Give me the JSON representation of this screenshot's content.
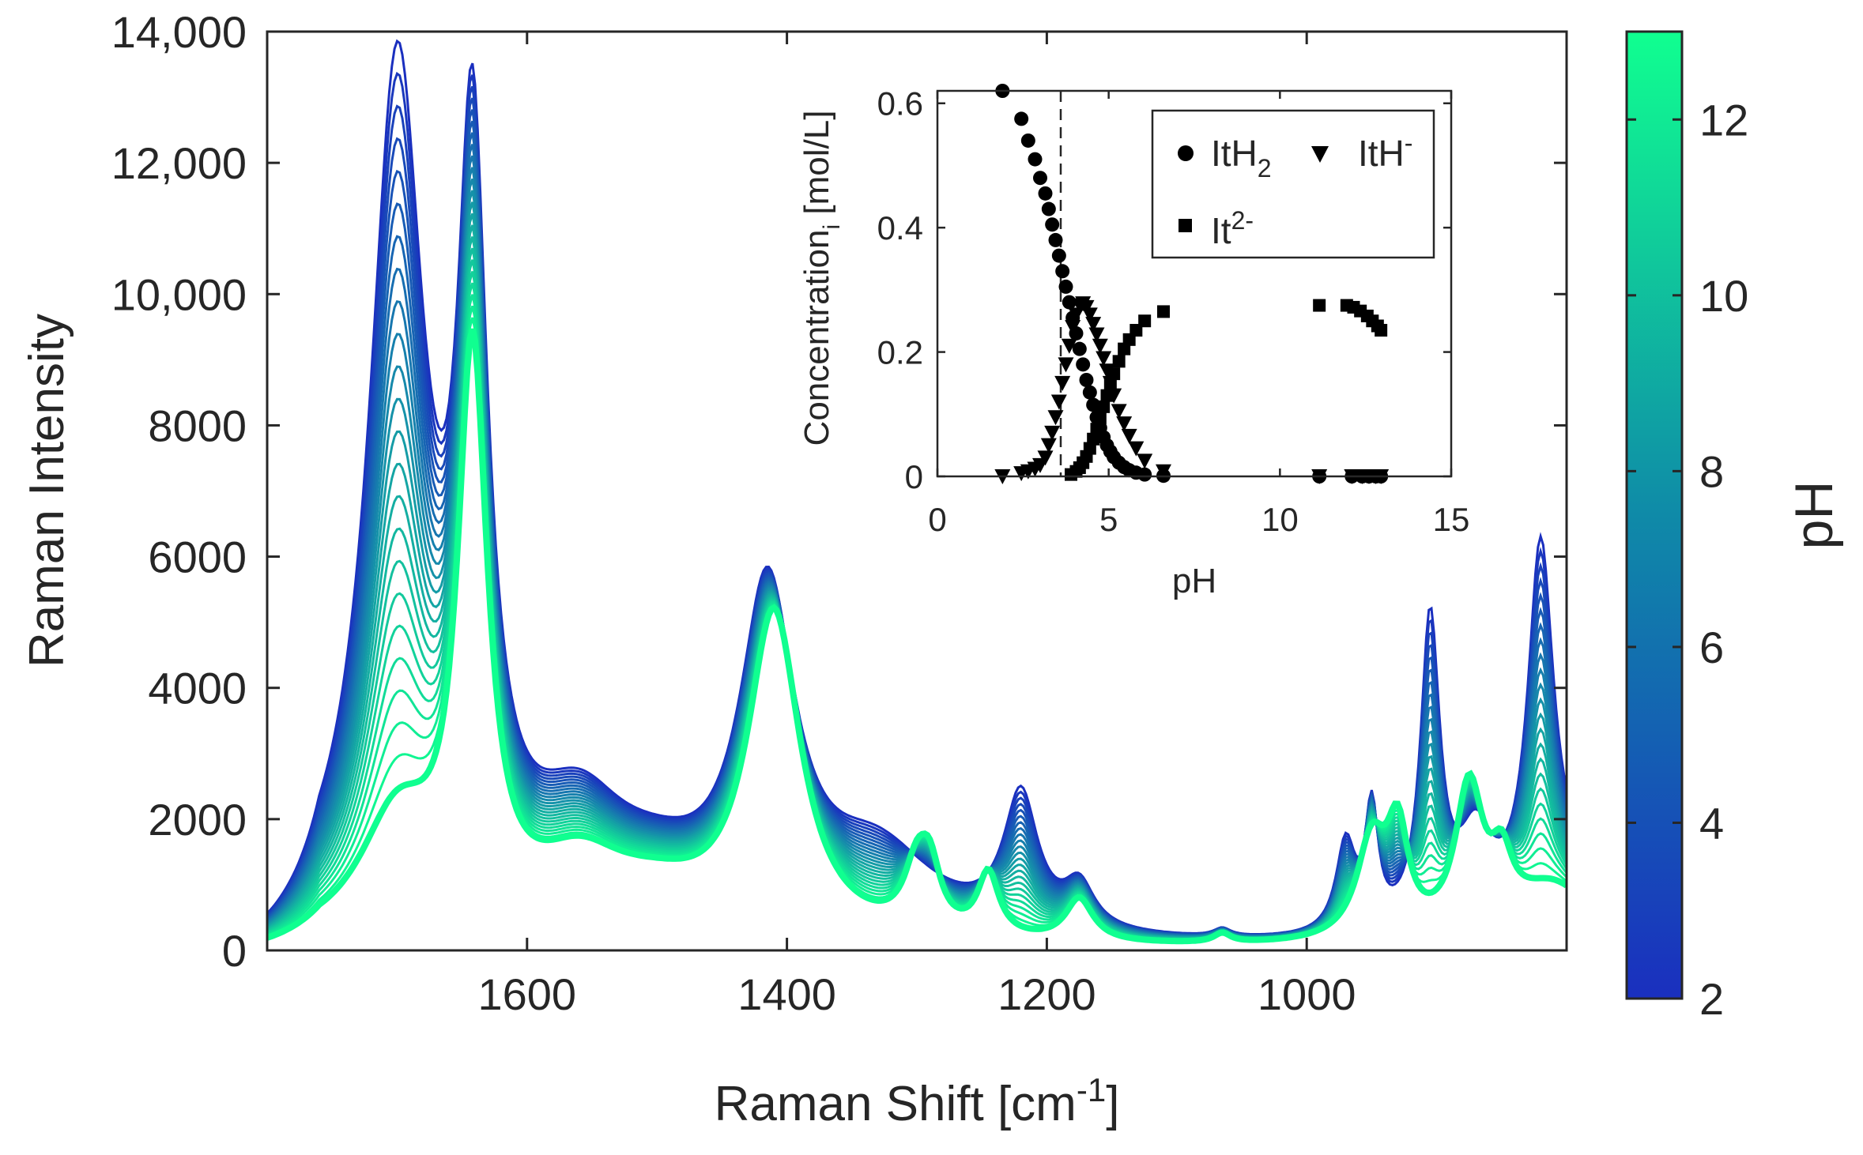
{
  "chart_data": [
    {
      "id": "main",
      "type": "line",
      "xlabel": "Raman Shift [cm",
      "xlabel_sup": "-1",
      "xlabel_end": "]",
      "ylabel": "Raman Intensity",
      "xlim": [
        1800,
        800
      ],
      "x_reversed": true,
      "ylim": [
        0,
        14000
      ],
      "xticks": [
        1600,
        1400,
        1200,
        1000
      ],
      "xtick_labels": [
        "1600",
        "1400",
        "1200",
        "1000"
      ],
      "yticks": [
        0,
        2000,
        4000,
        6000,
        8000,
        10000,
        12000,
        14000
      ],
      "ytick_labels": [
        "0",
        "2000",
        "4000",
        "6000",
        "8000",
        "10,000",
        "12,000",
        "14,000"
      ],
      "series_count": 24,
      "series_ph_range": [
        2,
        13
      ],
      "low_ph_peaks": [
        {
          "x": 1700,
          "y": 13600
        },
        {
          "x": 1642,
          "y": 13100
        },
        {
          "x": 1410,
          "y": 5800
        },
        {
          "x": 1220,
          "y": 2400
        },
        {
          "x": 905,
          "y": 5150
        },
        {
          "x": 820,
          "y": 6500
        }
      ],
      "high_ph_peaks": [
        {
          "x": 1642,
          "y": 9800
        },
        {
          "x": 1410,
          "y": 5600
        },
        {
          "x": 1245,
          "y": 1150
        },
        {
          "x": 1175,
          "y": 800
        },
        {
          "x": 1065,
          "y": 150
        },
        {
          "x": 950,
          "y": 1900
        },
        {
          "x": 930,
          "y": 2100
        },
        {
          "x": 875,
          "y": 2600
        },
        {
          "x": 850,
          "y": 1650
        }
      ]
    },
    {
      "id": "colorbar",
      "type": "colorbar",
      "label": "pH",
      "range": [
        2,
        13
      ],
      "ticks": [
        2,
        4,
        6,
        8,
        10,
        12
      ],
      "tick_labels": [
        "2",
        "4",
        "6",
        "8",
        "10",
        "12"
      ],
      "color_low": "#1a2fbf",
      "color_high": "#10ff90"
    },
    {
      "id": "inset",
      "type": "scatter",
      "xlabel": "pH",
      "ylabel": "Concentration",
      "ylabel_sub": "i",
      "ylabel_end": " [mol/L]",
      "xlim": [
        0,
        15
      ],
      "ylim": [
        0,
        0.62
      ],
      "xticks": [
        0,
        5,
        10,
        15
      ],
      "xtick_labels": [
        "0",
        "5",
        "10",
        "15"
      ],
      "yticks": [
        0,
        0.2,
        0.4,
        0.6
      ],
      "ytick_labels": [
        "0",
        "0.2",
        "0.4",
        "0.6"
      ],
      "dashed_vline_x": 3.6,
      "legend": {
        "location": "top-right",
        "entries": [
          {
            "marker": "circle",
            "label": "ItH",
            "sub": "2",
            "sup": ""
          },
          {
            "marker": "triangle-down",
            "label": "ItH",
            "sub": "",
            "sup": "-"
          },
          {
            "marker": "square",
            "label": "It",
            "sub": "",
            "sup": "2-"
          }
        ]
      },
      "series": [
        {
          "name": "ItH2",
          "marker": "circle",
          "x": [
            1.9,
            2.45,
            2.65,
            2.85,
            3.0,
            3.15,
            3.25,
            3.35,
            3.45,
            3.55,
            3.65,
            3.75,
            3.85,
            3.95,
            4.05,
            4.15,
            4.25,
            4.35,
            4.45,
            4.55,
            4.65,
            4.75,
            4.85,
            4.95,
            5.05,
            5.15,
            5.3,
            5.45,
            5.6,
            5.8,
            6.05,
            6.6,
            11.15,
            12.1,
            12.4,
            12.6,
            12.8,
            12.95
          ],
          "y": [
            0.62,
            0.575,
            0.54,
            0.51,
            0.48,
            0.455,
            0.43,
            0.405,
            0.38,
            0.355,
            0.33,
            0.305,
            0.28,
            0.255,
            0.23,
            0.205,
            0.18,
            0.155,
            0.135,
            0.115,
            0.095,
            0.078,
            0.063,
            0.05,
            0.04,
            0.031,
            0.022,
            0.015,
            0.01,
            0.006,
            0.003,
            0.001,
            0.0,
            0.0,
            0.0,
            0.0,
            0.0,
            0.0
          ]
        },
        {
          "name": "ItH-",
          "marker": "triangle-down",
          "x": [
            1.9,
            2.45,
            2.65,
            2.85,
            3.0,
            3.15,
            3.25,
            3.35,
            3.45,
            3.55,
            3.65,
            3.75,
            3.85,
            3.95,
            4.05,
            4.15,
            4.25,
            4.35,
            4.45,
            4.55,
            4.65,
            4.75,
            4.85,
            4.95,
            5.05,
            5.15,
            5.3,
            5.45,
            5.6,
            5.8,
            6.05,
            6.6,
            11.15,
            12.1,
            12.4,
            12.6,
            12.8,
            12.95
          ],
          "y": [
            0.0,
            0.005,
            0.008,
            0.012,
            0.018,
            0.03,
            0.05,
            0.07,
            0.095,
            0.12,
            0.15,
            0.18,
            0.21,
            0.24,
            0.26,
            0.275,
            0.278,
            0.272,
            0.26,
            0.245,
            0.228,
            0.21,
            0.19,
            0.17,
            0.15,
            0.13,
            0.105,
            0.085,
            0.065,
            0.045,
            0.025,
            0.008,
            0.0,
            0.0,
            0.0,
            0.0,
            0.0,
            0.0
          ]
        },
        {
          "name": "It2-",
          "marker": "square",
          "x": [
            3.9,
            4.05,
            4.15,
            4.25,
            4.35,
            4.45,
            4.55,
            4.65,
            4.75,
            4.85,
            4.95,
            5.05,
            5.15,
            5.3,
            5.45,
            5.6,
            5.8,
            6.05,
            6.6,
            11.15,
            11.95,
            12.15,
            12.35,
            12.55,
            12.7,
            12.85,
            12.95
          ],
          "y": [
            0.003,
            0.008,
            0.014,
            0.022,
            0.032,
            0.045,
            0.06,
            0.076,
            0.094,
            0.112,
            0.13,
            0.148,
            0.165,
            0.185,
            0.205,
            0.22,
            0.235,
            0.25,
            0.265,
            0.275,
            0.275,
            0.272,
            0.266,
            0.258,
            0.25,
            0.242,
            0.235
          ]
        }
      ]
    }
  ]
}
